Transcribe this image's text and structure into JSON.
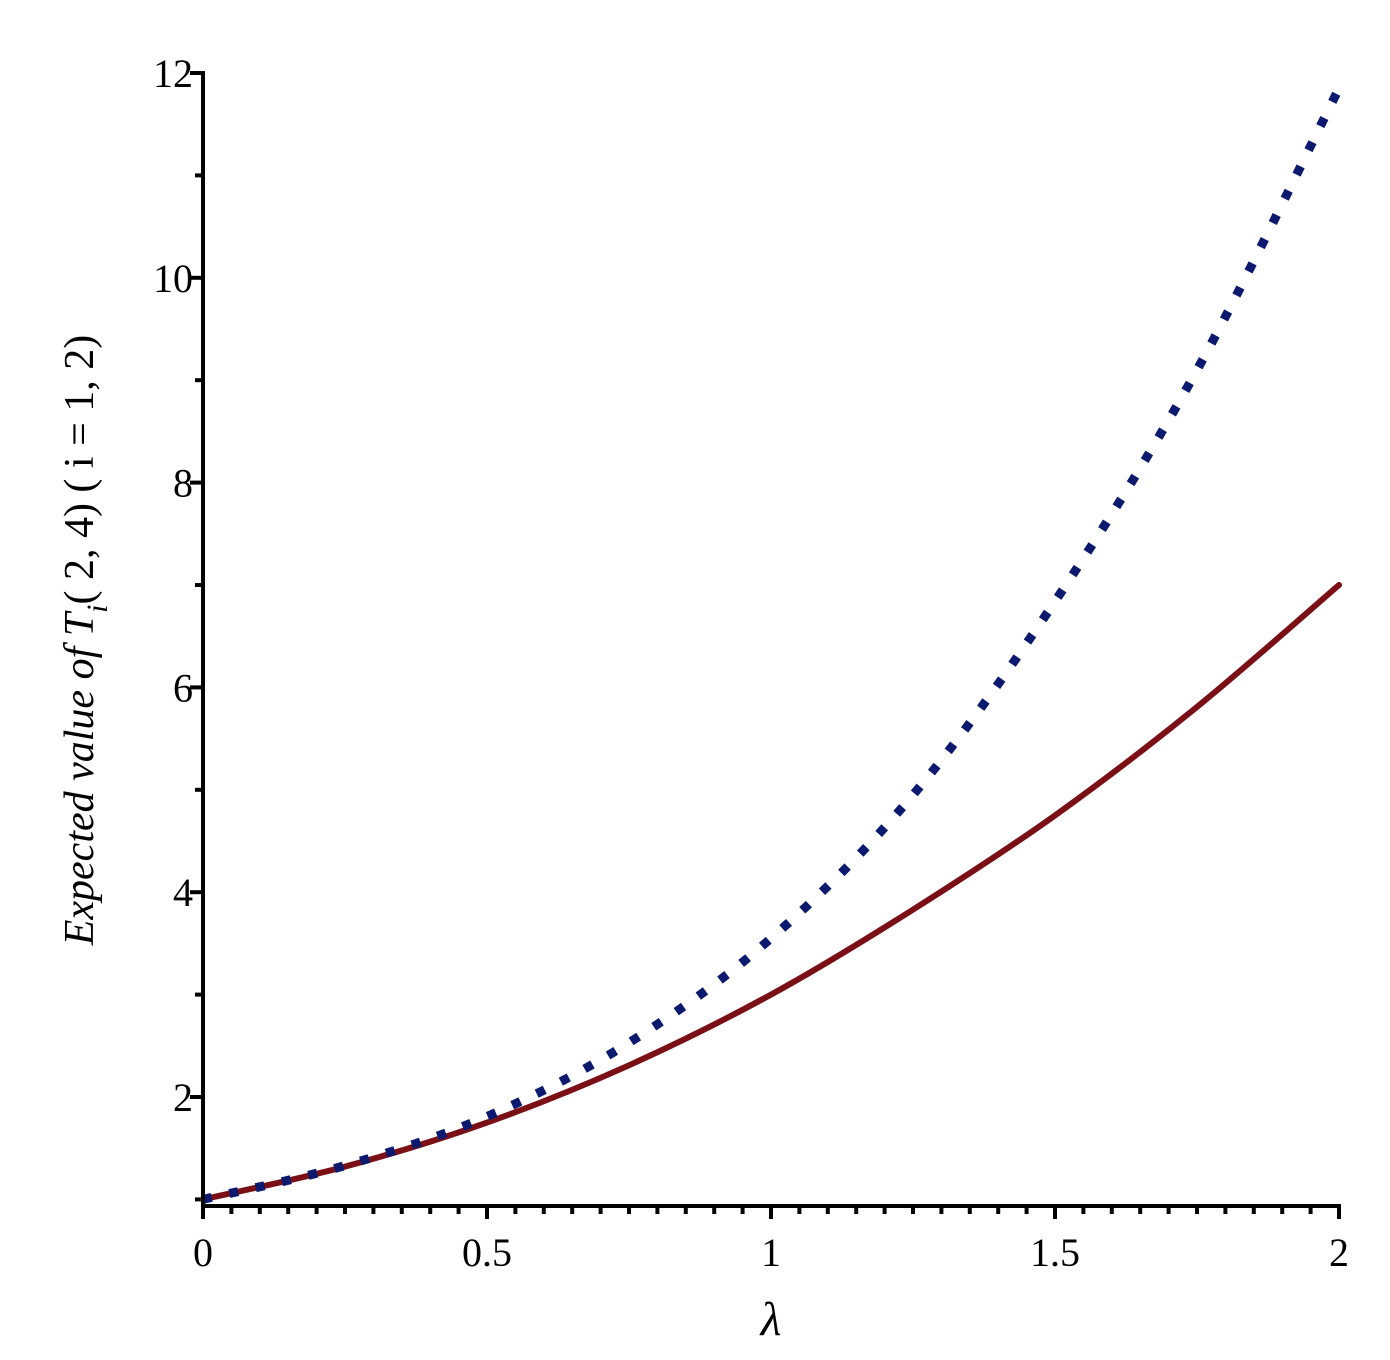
{
  "chart_data": {
    "type": "line",
    "title": "",
    "xlabel": "λ",
    "ylabel": {
      "prefix": "Expected value of T",
      "subscript": "i",
      "suffix": "( 2, 4)  ( i = 1, 2)"
    },
    "xlim": [
      0,
      2
    ],
    "ylim": [
      1,
      12
    ],
    "x_ticks": [
      "0",
      "0.5",
      "1",
      "1.5",
      "2"
    ],
    "y_ticks": [
      "2",
      "4",
      "6",
      "8",
      "10",
      "12"
    ],
    "grid": false,
    "legend": "none",
    "x": [
      0,
      0.25,
      0.5,
      0.75,
      1.0,
      1.25,
      1.5,
      1.75,
      2.0
    ],
    "series": [
      {
        "style": "solid",
        "color": "#7a1016",
        "values": [
          1.0,
          1.32,
          1.75,
          2.31,
          3.0,
          3.83,
          4.75,
          5.81,
          7.0
        ]
      },
      {
        "style": "dotted",
        "color": "#0b1a6e",
        "values": [
          1.0,
          1.33,
          1.81,
          2.53,
          3.55,
          4.95,
          6.84,
          9.1,
          11.85
        ]
      }
    ]
  }
}
